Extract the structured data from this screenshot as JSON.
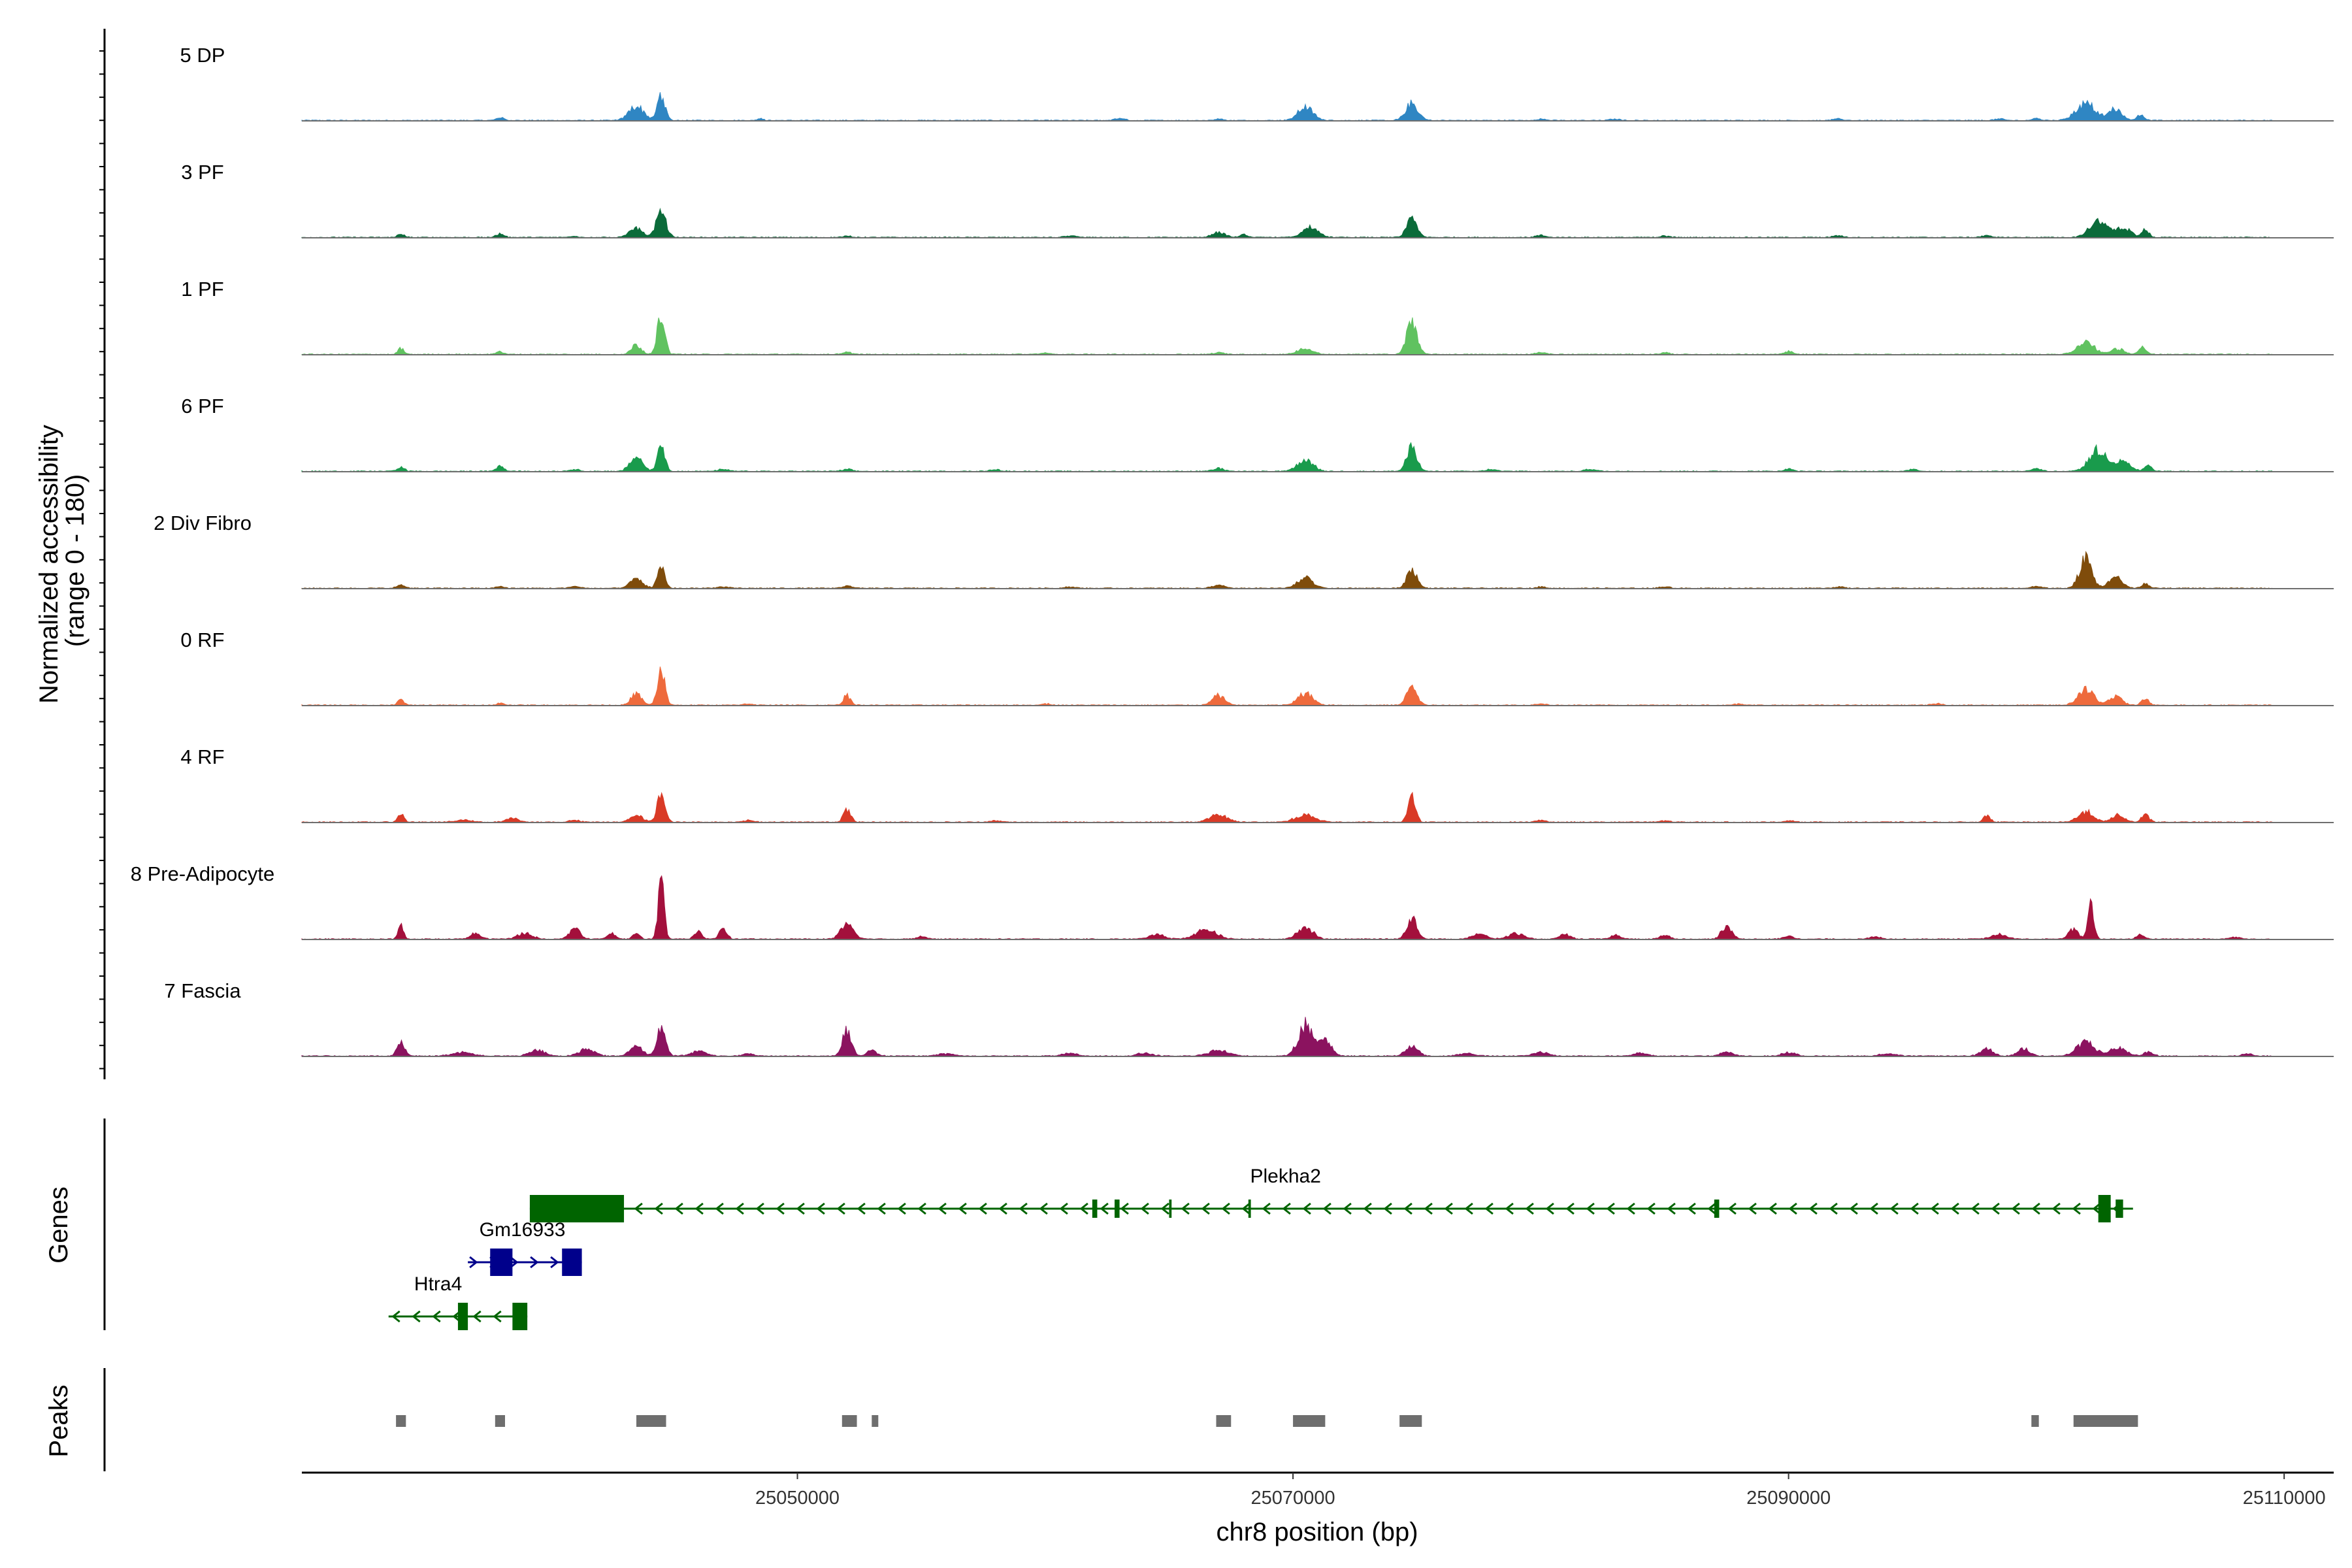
{
  "chart_data": {
    "type": "area",
    "title": "",
    "xlabel": "chr8 position (bp)",
    "ylabel": "Normalized accessibility\n(range 0 - 180)",
    "ylabel_lines": [
      "Normalized accessibility",
      "(range 0 - 180)"
    ],
    "y_range": [
      0,
      180
    ],
    "xlim": [
      25030000,
      25112000
    ],
    "x_ticks": [
      25050000,
      25070000,
      25090000,
      25110000
    ],
    "x_tick_labels": [
      "25050000",
      "25070000",
      "25090000",
      "25110000"
    ],
    "track_start": 25030000,
    "track_end": 25109500,
    "tracks": [
      {
        "name": "5 DP",
        "color": "#2f86c3",
        "peaks": [
          [
            25038000,
            6,
            150
          ],
          [
            25043500,
            30,
            300
          ],
          [
            25044500,
            55,
            150
          ],
          [
            25048500,
            5,
            100
          ],
          [
            25063000,
            4,
            200
          ],
          [
            25067000,
            4,
            150
          ],
          [
            25070500,
            28,
            300
          ],
          [
            25074800,
            35,
            250
          ],
          [
            25080000,
            3,
            200
          ],
          [
            25083000,
            3,
            200
          ],
          [
            25092000,
            3,
            200
          ],
          [
            25098500,
            3,
            200
          ],
          [
            25100000,
            5,
            150
          ],
          [
            25102000,
            35,
            400
          ],
          [
            25103200,
            25,
            250
          ],
          [
            25104200,
            12,
            150
          ]
        ]
      },
      {
        "name": "3 PF",
        "color": "#0b6b3a",
        "peaks": [
          [
            25034000,
            6,
            150
          ],
          [
            25038000,
            8,
            150
          ],
          [
            25041000,
            3,
            150
          ],
          [
            25043500,
            20,
            250
          ],
          [
            25044500,
            50,
            200
          ],
          [
            25052000,
            4,
            150
          ],
          [
            25061000,
            3,
            200
          ],
          [
            25067000,
            10,
            250
          ],
          [
            25068000,
            6,
            150
          ],
          [
            25070700,
            22,
            300
          ],
          [
            25074800,
            40,
            200
          ],
          [
            25080000,
            4,
            200
          ],
          [
            25085000,
            3,
            200
          ],
          [
            25092000,
            4,
            200
          ],
          [
            25098000,
            4,
            200
          ],
          [
            25102500,
            35,
            350
          ],
          [
            25103500,
            20,
            300
          ],
          [
            25104400,
            15,
            150
          ]
        ]
      },
      {
        "name": "1 PF",
        "color": "#60c260",
        "peaks": [
          [
            25034000,
            12,
            120
          ],
          [
            25038000,
            6,
            150
          ],
          [
            25043500,
            20,
            200
          ],
          [
            25044500,
            82,
            150
          ],
          [
            25052000,
            4,
            200
          ],
          [
            25060000,
            3,
            200
          ],
          [
            25067000,
            4,
            200
          ],
          [
            25070500,
            12,
            300
          ],
          [
            25074800,
            75,
            200
          ],
          [
            25080000,
            4,
            200
          ],
          [
            25085000,
            3,
            200
          ],
          [
            25090000,
            6,
            150
          ],
          [
            25102000,
            25,
            350
          ],
          [
            25103300,
            12,
            250
          ],
          [
            25104300,
            15,
            150
          ]
        ]
      },
      {
        "name": "6 PF",
        "color": "#199b4c",
        "peaks": [
          [
            25034000,
            8,
            150
          ],
          [
            25038000,
            12,
            150
          ],
          [
            25041000,
            4,
            200
          ],
          [
            25043500,
            30,
            250
          ],
          [
            25044500,
            58,
            150
          ],
          [
            25047000,
            4,
            200
          ],
          [
            25052000,
            4,
            200
          ],
          [
            25058000,
            3,
            250
          ],
          [
            25067000,
            6,
            200
          ],
          [
            25070500,
            25,
            300
          ],
          [
            25074800,
            50,
            200
          ],
          [
            25078000,
            4,
            200
          ],
          [
            25082000,
            5,
            200
          ],
          [
            25090000,
            6,
            150
          ],
          [
            25095000,
            4,
            200
          ],
          [
            25100000,
            6,
            200
          ],
          [
            25102500,
            45,
            350
          ],
          [
            25103500,
            20,
            300
          ],
          [
            25104500,
            12,
            150
          ]
        ]
      },
      {
        "name": "2 Div Fibro",
        "color": "#7f4c0b",
        "peaks": [
          [
            25034000,
            8,
            150
          ],
          [
            25038000,
            4,
            150
          ],
          [
            25041000,
            4,
            200
          ],
          [
            25043500,
            20,
            250
          ],
          [
            25044500,
            45,
            150
          ],
          [
            25047000,
            3,
            200
          ],
          [
            25052000,
            5,
            200
          ],
          [
            25061000,
            3,
            200
          ],
          [
            25067000,
            6,
            250
          ],
          [
            25070500,
            22,
            300
          ],
          [
            25074800,
            40,
            200
          ],
          [
            25080000,
            3,
            200
          ],
          [
            25085000,
            3,
            200
          ],
          [
            25092000,
            3,
            200
          ],
          [
            25100000,
            4,
            200
          ],
          [
            25102000,
            60,
            250
          ],
          [
            25103200,
            25,
            250
          ],
          [
            25104400,
            10,
            150
          ]
        ]
      },
      {
        "name": "0 RF",
        "color": "#ee6a3c",
        "peaks": [
          [
            25034000,
            12,
            120
          ],
          [
            25038000,
            4,
            150
          ],
          [
            25043500,
            25,
            200
          ],
          [
            25044500,
            72,
            150
          ],
          [
            25048000,
            3,
            200
          ],
          [
            25052000,
            20,
            150
          ],
          [
            25060000,
            3,
            200
          ],
          [
            25067000,
            20,
            250
          ],
          [
            25070500,
            25,
            300
          ],
          [
            25074800,
            42,
            200
          ],
          [
            25080000,
            3,
            200
          ],
          [
            25088000,
            3,
            200
          ],
          [
            25096000,
            3,
            200
          ],
          [
            25102000,
            35,
            300
          ],
          [
            25103200,
            20,
            250
          ],
          [
            25104400,
            15,
            150
          ]
        ]
      },
      {
        "name": "4 RF",
        "color": "#d93a26",
        "peaks": [
          [
            25034000,
            18,
            120
          ],
          [
            25036500,
            5,
            300
          ],
          [
            25038500,
            8,
            250
          ],
          [
            25041000,
            4,
            200
          ],
          [
            25043500,
            15,
            250
          ],
          [
            25044500,
            65,
            150
          ],
          [
            25048000,
            4,
            200
          ],
          [
            25052000,
            25,
            150
          ],
          [
            25058000,
            3,
            200
          ],
          [
            25067000,
            15,
            350
          ],
          [
            25070500,
            15,
            400
          ],
          [
            25074800,
            52,
            150
          ],
          [
            25080000,
            4,
            200
          ],
          [
            25085000,
            3,
            200
          ],
          [
            25090000,
            3,
            200
          ],
          [
            25098000,
            12,
            150
          ],
          [
            25102000,
            22,
            300
          ],
          [
            25103300,
            15,
            250
          ],
          [
            25104400,
            15,
            150
          ]
        ]
      },
      {
        "name": "8 Pre-Adipocyte",
        "color": "#a3103c",
        "peaks": [
          [
            25034000,
            30,
            100
          ],
          [
            25037000,
            12,
            200
          ],
          [
            25039000,
            12,
            300
          ],
          [
            25041000,
            25,
            200
          ],
          [
            25042500,
            12,
            150
          ],
          [
            25043500,
            12,
            150
          ],
          [
            25044500,
            115,
            120
          ],
          [
            25046000,
            18,
            150
          ],
          [
            25047000,
            22,
            150
          ],
          [
            25052000,
            35,
            250
          ],
          [
            25055000,
            6,
            200
          ],
          [
            25064500,
            10,
            300
          ],
          [
            25066500,
            20,
            400
          ],
          [
            25070500,
            25,
            300
          ],
          [
            25074800,
            45,
            200
          ],
          [
            25077500,
            10,
            300
          ],
          [
            25079000,
            12,
            300
          ],
          [
            25081000,
            10,
            200
          ],
          [
            25083000,
            8,
            200
          ],
          [
            25085000,
            8,
            200
          ],
          [
            25087500,
            28,
            200
          ],
          [
            25090000,
            6,
            200
          ],
          [
            25093500,
            6,
            200
          ],
          [
            25098500,
            10,
            300
          ],
          [
            25101500,
            20,
            200
          ],
          [
            25102200,
            78,
            120
          ],
          [
            25104200,
            10,
            150
          ],
          [
            25108000,
            5,
            200
          ]
        ]
      },
      {
        "name": "7 Fascia",
        "color": "#8b135f",
        "peaks": [
          [
            25034000,
            28,
            150
          ],
          [
            25036500,
            8,
            400
          ],
          [
            25039500,
            12,
            300
          ],
          [
            25041500,
            15,
            300
          ],
          [
            25043500,
            22,
            250
          ],
          [
            25044500,
            58,
            180
          ],
          [
            25046000,
            10,
            300
          ],
          [
            25048000,
            6,
            200
          ],
          [
            25052000,
            55,
            180
          ],
          [
            25053000,
            12,
            200
          ],
          [
            25056000,
            5,
            300
          ],
          [
            25061000,
            5,
            300
          ],
          [
            25064000,
            6,
            300
          ],
          [
            25067000,
            12,
            400
          ],
          [
            25070500,
            65,
            280
          ],
          [
            25071300,
            35,
            250
          ],
          [
            25074800,
            20,
            250
          ],
          [
            25077000,
            6,
            300
          ],
          [
            25080000,
            8,
            300
          ],
          [
            25084000,
            6,
            300
          ],
          [
            25087500,
            8,
            250
          ],
          [
            25090000,
            8,
            250
          ],
          [
            25094000,
            5,
            300
          ],
          [
            25098000,
            15,
            250
          ],
          [
            25099500,
            15,
            250
          ],
          [
            25102000,
            30,
            350
          ],
          [
            25103300,
            18,
            300
          ],
          [
            25104500,
            8,
            200
          ],
          [
            25108500,
            6,
            200
          ]
        ]
      }
    ],
    "genes": [
      {
        "name": "Plekha2",
        "strand": "-",
        "color": "#006400",
        "row": 0,
        "start": 25039200,
        "end": 25103900,
        "label_pos": 25069700,
        "exons": [
          [
            25039200,
            25043000
          ],
          [
            25061900,
            25062100
          ],
          [
            25062800,
            25063000
          ],
          [
            25065000,
            25065100
          ],
          [
            25068200,
            25068300
          ],
          [
            25087000,
            25087200
          ],
          [
            25102500,
            25103000
          ],
          [
            25103200,
            25103500
          ]
        ]
      },
      {
        "name": "Gm16933",
        "strand": "+",
        "color": "#00008b",
        "row": 1,
        "start": 25036700,
        "end": 25041300,
        "label_pos": 25038900,
        "exons": [
          [
            25037600,
            25038500
          ],
          [
            25040500,
            25041300
          ]
        ]
      },
      {
        "name": "Htra4",
        "strand": "-",
        "color": "#006400",
        "row": 2,
        "start": 25033500,
        "end": 25039100,
        "label_pos": 25035500,
        "exons": [
          [
            25036300,
            25036700
          ],
          [
            25038500,
            25039100
          ]
        ]
      }
    ],
    "peak_regions": [
      [
        25033800,
        25034200
      ],
      [
        25037800,
        25038200
      ],
      [
        25043500,
        25044700
      ],
      [
        25051800,
        25052400
      ],
      [
        25053000,
        25053200
      ],
      [
        25066900,
        25067500
      ],
      [
        25070000,
        25071300
      ],
      [
        25074300,
        25075200
      ],
      [
        25099800,
        25100100
      ],
      [
        25101500,
        25104100
      ]
    ],
    "panel_labels": {
      "genes": "Genes",
      "peaks": "Peaks"
    }
  }
}
